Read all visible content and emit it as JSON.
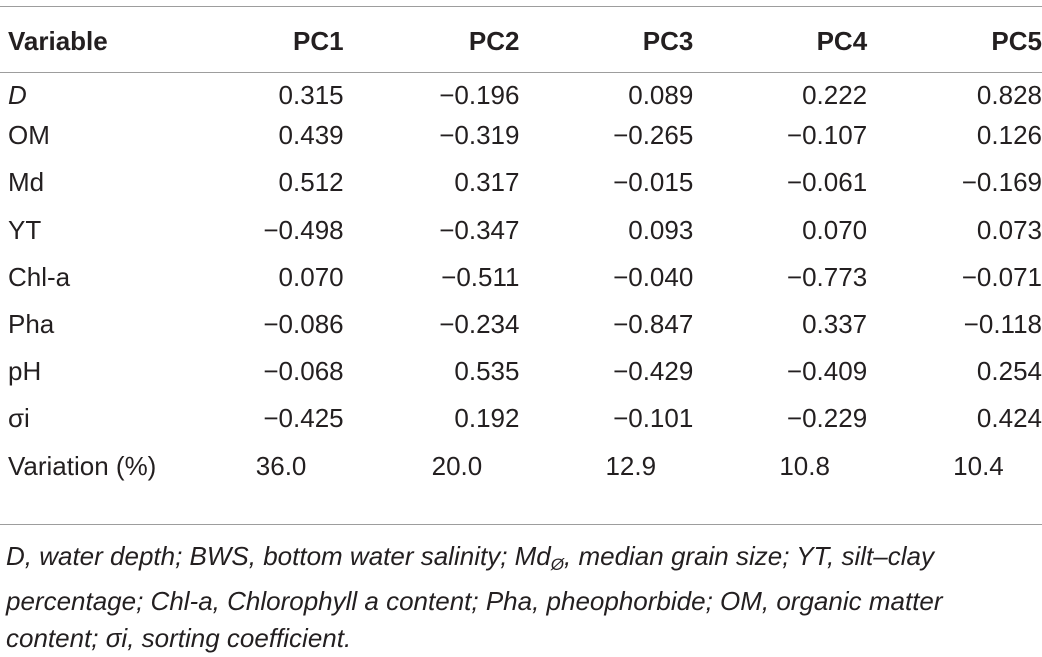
{
  "table": {
    "headers": [
      "Variable",
      "PC1",
      "PC2",
      "PC3",
      "PC4",
      "PC5"
    ],
    "rows": [
      {
        "variable": "D",
        "values": [
          "0.315",
          "−0.196",
          "0.089",
          "0.222",
          "0.828"
        ]
      },
      {
        "variable": "OM",
        "values": [
          "0.439",
          "−0.319",
          "−0.265",
          "−0.107",
          "0.126"
        ]
      },
      {
        "variable": "Md",
        "values": [
          "0.512",
          "0.317",
          "−0.015",
          "−0.061",
          "−0.169"
        ]
      },
      {
        "variable": "YT",
        "values": [
          "−0.498",
          "−0.347",
          "0.093",
          "0.070",
          "0.073"
        ]
      },
      {
        "variable": "Chl-a",
        "values": [
          "0.070",
          "−0.511",
          "−0.040",
          "−0.773",
          "−0.071"
        ]
      },
      {
        "variable": "Pha",
        "values": [
          "−0.086",
          "−0.234",
          "−0.847",
          "0.337",
          "−0.118"
        ]
      },
      {
        "variable": "pH",
        "values": [
          "−0.068",
          "0.535",
          "−0.429",
          "−0.409",
          "0.254"
        ]
      },
      {
        "variable": "σi",
        "values": [
          "−0.425",
          "0.192",
          "−0.101",
          "−0.229",
          "0.424"
        ]
      }
    ],
    "variation": {
      "label": "Variation (%)",
      "values": [
        "36.0",
        "20.0",
        "12.9",
        "10.8",
        "10.4"
      ]
    }
  },
  "footnote": {
    "part1": "D, water depth; BWS, bottom water salinity; Md",
    "subscript": "Ø",
    "part2": ", median grain size; YT, silt–clay percentage; Chl-a, Chlorophyll a content; Pha, pheophorbide; OM, organic matter content; σi, sorting coefficient."
  }
}
